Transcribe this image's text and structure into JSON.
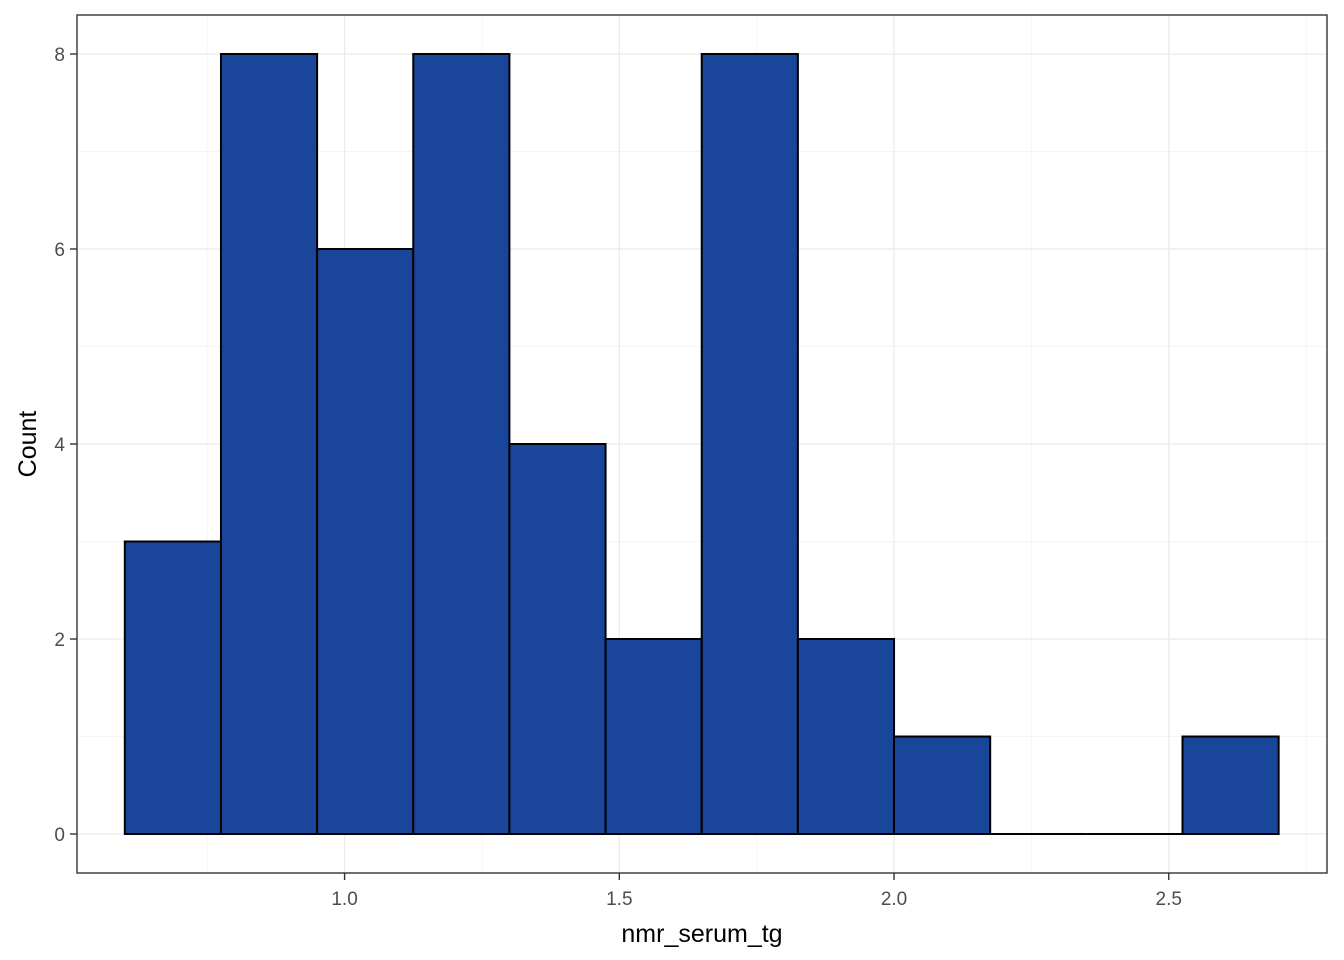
{
  "chart_data": {
    "type": "bar",
    "subtype": "histogram",
    "xlabel": "nmr_serum_tg",
    "ylabel": "Count",
    "bin_width": 0.175,
    "bins": [
      {
        "x0": 0.6,
        "x1": 0.775,
        "count": 3
      },
      {
        "x0": 0.775,
        "x1": 0.95,
        "count": 8
      },
      {
        "x0": 0.95,
        "x1": 1.125,
        "count": 6
      },
      {
        "x0": 1.125,
        "x1": 1.3,
        "count": 8
      },
      {
        "x0": 1.3,
        "x1": 1.475,
        "count": 4
      },
      {
        "x0": 1.475,
        "x1": 1.65,
        "count": 2
      },
      {
        "x0": 1.65,
        "x1": 1.825,
        "count": 8
      },
      {
        "x0": 1.825,
        "x1": 2.0,
        "count": 2
      },
      {
        "x0": 2.0,
        "x1": 2.175,
        "count": 1
      },
      {
        "x0": 2.175,
        "x1": 2.35,
        "count": 0
      },
      {
        "x0": 2.35,
        "x1": 2.525,
        "count": 0
      },
      {
        "x0": 2.525,
        "x1": 2.7,
        "count": 1
      }
    ],
    "xlim": [
      0.513,
      2.788
    ],
    "ylim": [
      -0.4,
      8.4
    ],
    "x_ticks": [
      1.0,
      1.5,
      2.0,
      2.5
    ],
    "x_tick_labels": [
      "1.0",
      "1.5",
      "2.0",
      "2.5"
    ],
    "y_ticks": [
      0,
      2,
      4,
      6,
      8
    ],
    "y_tick_labels": [
      "0",
      "2",
      "4",
      "6",
      "8"
    ],
    "grid": true,
    "legend": "none",
    "colors": {
      "bar_fill": "#19459a",
      "bar_stroke": "#000000",
      "grid_major": "#ebebeb",
      "grid_minor": "#f5f5f5",
      "panel_border": "#333333",
      "tick_label": "#4d4d4d"
    }
  }
}
